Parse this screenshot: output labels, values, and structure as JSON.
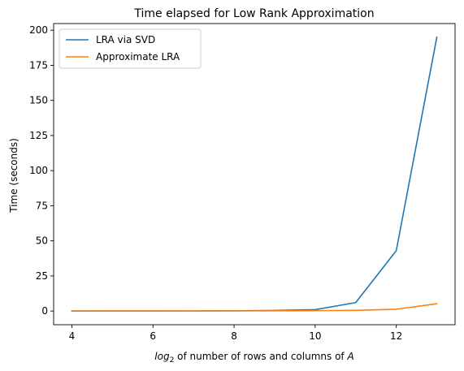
{
  "chart_data": {
    "type": "line",
    "title": "Time elapsed for Low Rank Approximation",
    "xlabel": {
      "log": "log",
      "sub": "2",
      "rest": " of number of rows and columns of ",
      "var": "A"
    },
    "ylabel": "Time (seconds)",
    "xlim": [
      3.55,
      13.45
    ],
    "ylim": [
      -9.75,
      204.75
    ],
    "xticks": [
      4,
      6,
      8,
      10,
      12
    ],
    "yticks": [
      0,
      25,
      50,
      75,
      100,
      125,
      150,
      175,
      200
    ],
    "x": [
      4,
      5,
      6,
      7,
      8,
      9,
      10,
      11,
      12,
      13
    ],
    "legend_position": "upper-left",
    "series": [
      {
        "name": "LRA via SVD",
        "color": "#1f77b4",
        "values": [
          0.02,
          0.03,
          0.05,
          0.08,
          0.15,
          0.4,
          1.0,
          6.0,
          43.0,
          195.0
        ]
      },
      {
        "name": "Approximate LRA",
        "color": "#ff7f0e",
        "values": [
          0.01,
          0.02,
          0.03,
          0.05,
          0.08,
          0.15,
          0.3,
          0.5,
          1.3,
          5.2
        ]
      }
    ]
  }
}
